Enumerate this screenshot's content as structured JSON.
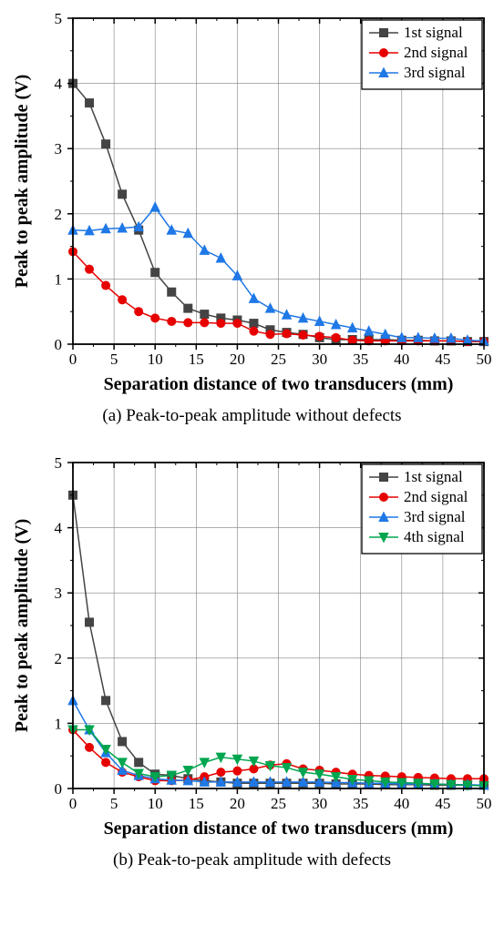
{
  "colors": {
    "grid": "#808080",
    "axis": "#000000",
    "bg": "#ffffff",
    "s1": "#444444",
    "s2": "#e60000",
    "s3": "#1f78e6",
    "s4": "#00a64f"
  },
  "fonts": {
    "axis_label": 20,
    "tick": 17,
    "legend": 17,
    "caption": 19
  },
  "xlabel": "Separation distance of two transducers (mm)",
  "ylabel": "Peak to peak amplitude (V)",
  "xlim": [
    0,
    50
  ],
  "ylim": [
    0,
    5
  ],
  "xticks": [
    0,
    5,
    10,
    15,
    20,
    25,
    30,
    35,
    40,
    45,
    50
  ],
  "yticks": [
    0,
    1,
    2,
    3,
    4,
    5
  ],
  "chartA": {
    "caption": "(a) Peak-to-peak amplitude without defects",
    "legend": [
      "1st signal",
      "2nd signal",
      "3rd signal"
    ],
    "series": [
      {
        "name": "1st signal",
        "color_key": "s1",
        "marker": "square",
        "x": [
          0,
          2,
          4,
          6,
          8,
          10,
          12,
          14,
          16,
          18,
          20,
          22,
          24,
          26,
          28,
          30,
          32,
          34,
          36,
          38,
          40,
          42,
          44,
          46,
          48,
          50
        ],
        "y": [
          4.0,
          3.7,
          3.07,
          2.3,
          1.75,
          1.1,
          0.8,
          0.55,
          0.46,
          0.4,
          0.37,
          0.32,
          0.22,
          0.18,
          0.15,
          0.1,
          0.07,
          0.07,
          0.07,
          0.07,
          0.06,
          0.06,
          0.05,
          0.05,
          0.04,
          0.04
        ]
      },
      {
        "name": "2nd signal",
        "color_key": "s2",
        "marker": "circle",
        "x": [
          0,
          2,
          4,
          6,
          8,
          10,
          12,
          14,
          16,
          18,
          20,
          22,
          24,
          26,
          28,
          30,
          32,
          34,
          36,
          38,
          40,
          42,
          44,
          46,
          48,
          50
        ],
        "y": [
          1.42,
          1.15,
          0.9,
          0.68,
          0.5,
          0.4,
          0.35,
          0.33,
          0.33,
          0.32,
          0.32,
          0.2,
          0.15,
          0.16,
          0.14,
          0.12,
          0.1,
          0.06,
          0.05,
          0.05,
          0.05,
          0.05,
          0.05,
          0.05,
          0.04,
          0.04
        ]
      },
      {
        "name": "3rd signal",
        "color_key": "s3",
        "marker": "up-triangle",
        "x": [
          0,
          2,
          4,
          6,
          8,
          10,
          12,
          14,
          16,
          18,
          20,
          22,
          24,
          26,
          28,
          30,
          32,
          34,
          36,
          38,
          40,
          42,
          44,
          46,
          48,
          50
        ],
        "y": [
          1.75,
          1.74,
          1.77,
          1.78,
          1.8,
          2.1,
          1.75,
          1.7,
          1.44,
          1.32,
          1.05,
          0.7,
          0.55,
          0.45,
          0.4,
          0.35,
          0.3,
          0.25,
          0.2,
          0.15,
          0.1,
          0.1,
          0.09,
          0.09,
          0.06,
          0.05
        ]
      }
    ]
  },
  "chartB": {
    "caption": "(b) Peak-to-peak amplitude with defects",
    "legend": [
      "1st signal",
      "2nd signal",
      "3rd signal",
      "4th signal"
    ],
    "series": [
      {
        "name": "1st signal",
        "color_key": "s1",
        "marker": "square",
        "x": [
          0,
          2,
          4,
          6,
          8,
          10,
          12,
          14,
          16,
          18,
          20,
          22,
          24,
          26,
          28,
          30,
          32,
          34,
          36,
          38,
          40,
          42,
          44,
          46,
          48,
          50
        ],
        "y": [
          4.5,
          2.55,
          1.35,
          0.72,
          0.4,
          0.22,
          0.2,
          0.15,
          0.12,
          0.1,
          0.08,
          0.08,
          0.08,
          0.08,
          0.08,
          0.08,
          0.07,
          0.07,
          0.07,
          0.06,
          0.06,
          0.06,
          0.05,
          0.05,
          0.05,
          0.05
        ]
      },
      {
        "name": "2nd signal",
        "color_key": "s2",
        "marker": "circle",
        "x": [
          0,
          2,
          4,
          6,
          8,
          10,
          12,
          14,
          16,
          18,
          20,
          22,
          24,
          26,
          28,
          30,
          32,
          34,
          36,
          38,
          40,
          42,
          44,
          46,
          48,
          50
        ],
        "y": [
          0.9,
          0.63,
          0.4,
          0.25,
          0.18,
          0.12,
          0.12,
          0.13,
          0.18,
          0.25,
          0.27,
          0.3,
          0.36,
          0.38,
          0.3,
          0.28,
          0.25,
          0.22,
          0.2,
          0.19,
          0.18,
          0.17,
          0.16,
          0.15,
          0.15,
          0.15
        ]
      },
      {
        "name": "3rd signal",
        "color_key": "s3",
        "marker": "up-triangle",
        "x": [
          0,
          2,
          4,
          6,
          8,
          10,
          12,
          14,
          16,
          18,
          20,
          22,
          24,
          26,
          28,
          30,
          32,
          34,
          36,
          38,
          40,
          42,
          44,
          46,
          48,
          50
        ],
        "y": [
          1.35,
          0.9,
          0.55,
          0.28,
          0.2,
          0.15,
          0.13,
          0.12,
          0.1,
          0.1,
          0.1,
          0.1,
          0.1,
          0.1,
          0.1,
          0.1,
          0.09,
          0.09,
          0.08,
          0.08,
          0.07,
          0.07,
          0.07,
          0.06,
          0.06,
          0.05
        ]
      },
      {
        "name": "4th signal",
        "color_key": "s4",
        "marker": "down-triangle",
        "x": [
          0,
          2,
          4,
          6,
          8,
          10,
          12,
          14,
          16,
          18,
          20,
          22,
          24,
          26,
          28,
          30,
          32,
          34,
          36,
          38,
          40,
          42,
          44,
          46,
          48,
          50
        ],
        "y": [
          0.9,
          0.9,
          0.6,
          0.4,
          0.23,
          0.18,
          0.2,
          0.28,
          0.4,
          0.48,
          0.45,
          0.42,
          0.35,
          0.32,
          0.25,
          0.22,
          0.18,
          0.14,
          0.12,
          0.1,
          0.09,
          0.08,
          0.07,
          0.06,
          0.05,
          0.04
        ]
      }
    ]
  }
}
